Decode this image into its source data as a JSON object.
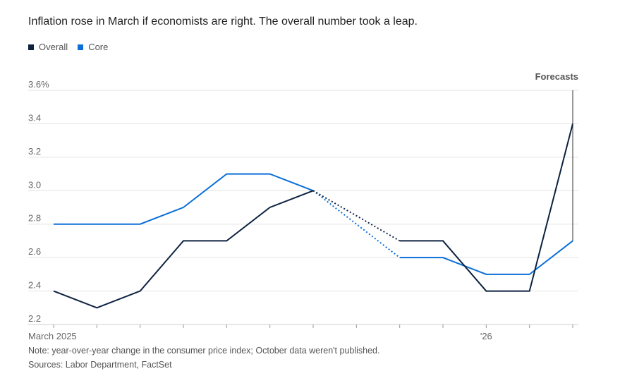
{
  "title": "Inflation rose in March if economists are right. The overall number took a leap.",
  "note": "Note: year-over-year change in the consumer price index; October data weren't published.",
  "sources": "Sources: Labor Department, FactSet",
  "colors": {
    "overall": "#0d2240",
    "core": "#0a6fd8",
    "grid": "#e3e3e3",
    "axis": "#9a9a9a"
  },
  "chart_data": {
    "type": "line",
    "x": [
      "Mar 2025",
      "Apr 2025",
      "May 2025",
      "Jun 2025",
      "Jul 2025",
      "Aug 2025",
      "Sep 2025",
      "Oct 2025",
      "Nov 2025",
      "Dec 2025",
      "Jan 2026",
      "Feb 2026",
      "Mar 2026"
    ],
    "x_tick_labels": [
      {
        "x": "Mar 2025",
        "label": "March 2025"
      },
      {
        "x": "Jan 2026",
        "label": "'26"
      }
    ],
    "series": [
      {
        "name": "Overall",
        "values": [
          2.4,
          2.3,
          2.4,
          2.7,
          2.7,
          2.9,
          3.0,
          null,
          2.7,
          2.7,
          2.4,
          2.4,
          3.4
        ]
      },
      {
        "name": "Core",
        "values": [
          2.8,
          2.8,
          2.8,
          2.9,
          3.1,
          3.1,
          3.0,
          null,
          2.6,
          2.6,
          2.5,
          2.5,
          2.7
        ]
      }
    ],
    "missing_data_style": "dotted",
    "y_ticks": [
      "2.2",
      "2.4",
      "2.6",
      "2.8",
      "3.0",
      "3.2",
      "3.4",
      "3.6%"
    ],
    "ylim": [
      2.2,
      3.6
    ],
    "grid": true,
    "legend": "top-left",
    "annotations": [
      {
        "x": "Mar 2026",
        "text": "Forecasts"
      }
    ]
  }
}
